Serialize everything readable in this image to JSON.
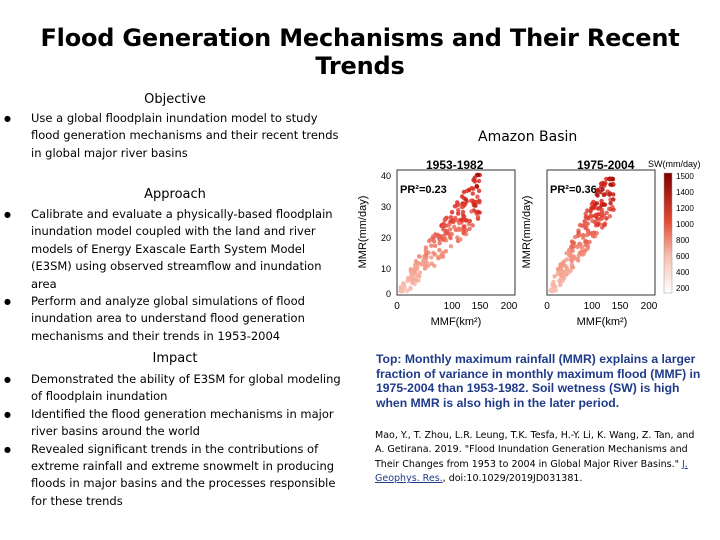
{
  "title": "Flood Generation Mechanisms and Their Recent Trends",
  "objective": {
    "heading": "Objective",
    "items": [
      "Use a global floodplain inundation model to study flood generation mechanisms and their recent trends in global major river basins"
    ]
  },
  "approach": {
    "heading": "Approach",
    "items": [
      "Calibrate and evaluate a physically-based floodplain inundation model coupled with the land and river models of Energy Exascale Earth System Model (E3SM) using observed streamflow and inundation area",
      "Perform and analyze global simulations of flood inundation area to understand flood generation mechanisms and their trends in 1953-2004"
    ]
  },
  "impact": {
    "heading": "Impact",
    "items": [
      "Demonstrated the ability of E3SM for global modeling of floodplain inundation",
      "Identified the flood generation mechanisms in major river basins around the world",
      "Revealed significant trends in the contributions of extreme rainfall and extreme snowmelt in producing floods in major basins and the processes responsible for these trends"
    ]
  },
  "figure": {
    "basin_title": "Amazon Basin",
    "panel1_title": "1953-1982",
    "panel1_pr2": "PR²=0.23",
    "panel2_title": "1975-2004",
    "panel2_pr2": "PR²=0.36",
    "ylabel": "MMR(mm/day)",
    "xlabel": "MMF(km²)",
    "x_ticks": [
      "0",
      "100",
      "150",
      "200"
    ],
    "y_ticks": [
      "40",
      "30",
      "20",
      "10",
      "0"
    ],
    "colorbar_label": "SW(mm/day)",
    "colorbar_ticks": [
      "1500",
      "1400",
      "1200",
      "1000",
      "800",
      "600",
      "400",
      "200"
    ],
    "colors": {
      "low": "#fbe3dd",
      "high": "#8b0000",
      "caption": "#1f3b8a"
    }
  },
  "caption": "Top: Monthly maximum rainfall (MMR) explains a larger fraction of variance in monthly maximum flood (MMF) in 1975-2004 than 1953-1982. Soil wetness (SW) is high when MMR is also high in the later period.",
  "citation": {
    "text": "Mao, Y., T. Zhou, L.R. Leung, T.K. Tesfa, H.-Y. Li, K. Wang, Z. Tan, and A. Getirana. 2019. \"Flood Inundation Generation Mechanisms and Their Changes from 1953 to 2004 in Global Major River Basins.\" ",
    "journal": "J. Geophys. Res.",
    "doi": ", doi:10.1029/2019JD031381."
  }
}
